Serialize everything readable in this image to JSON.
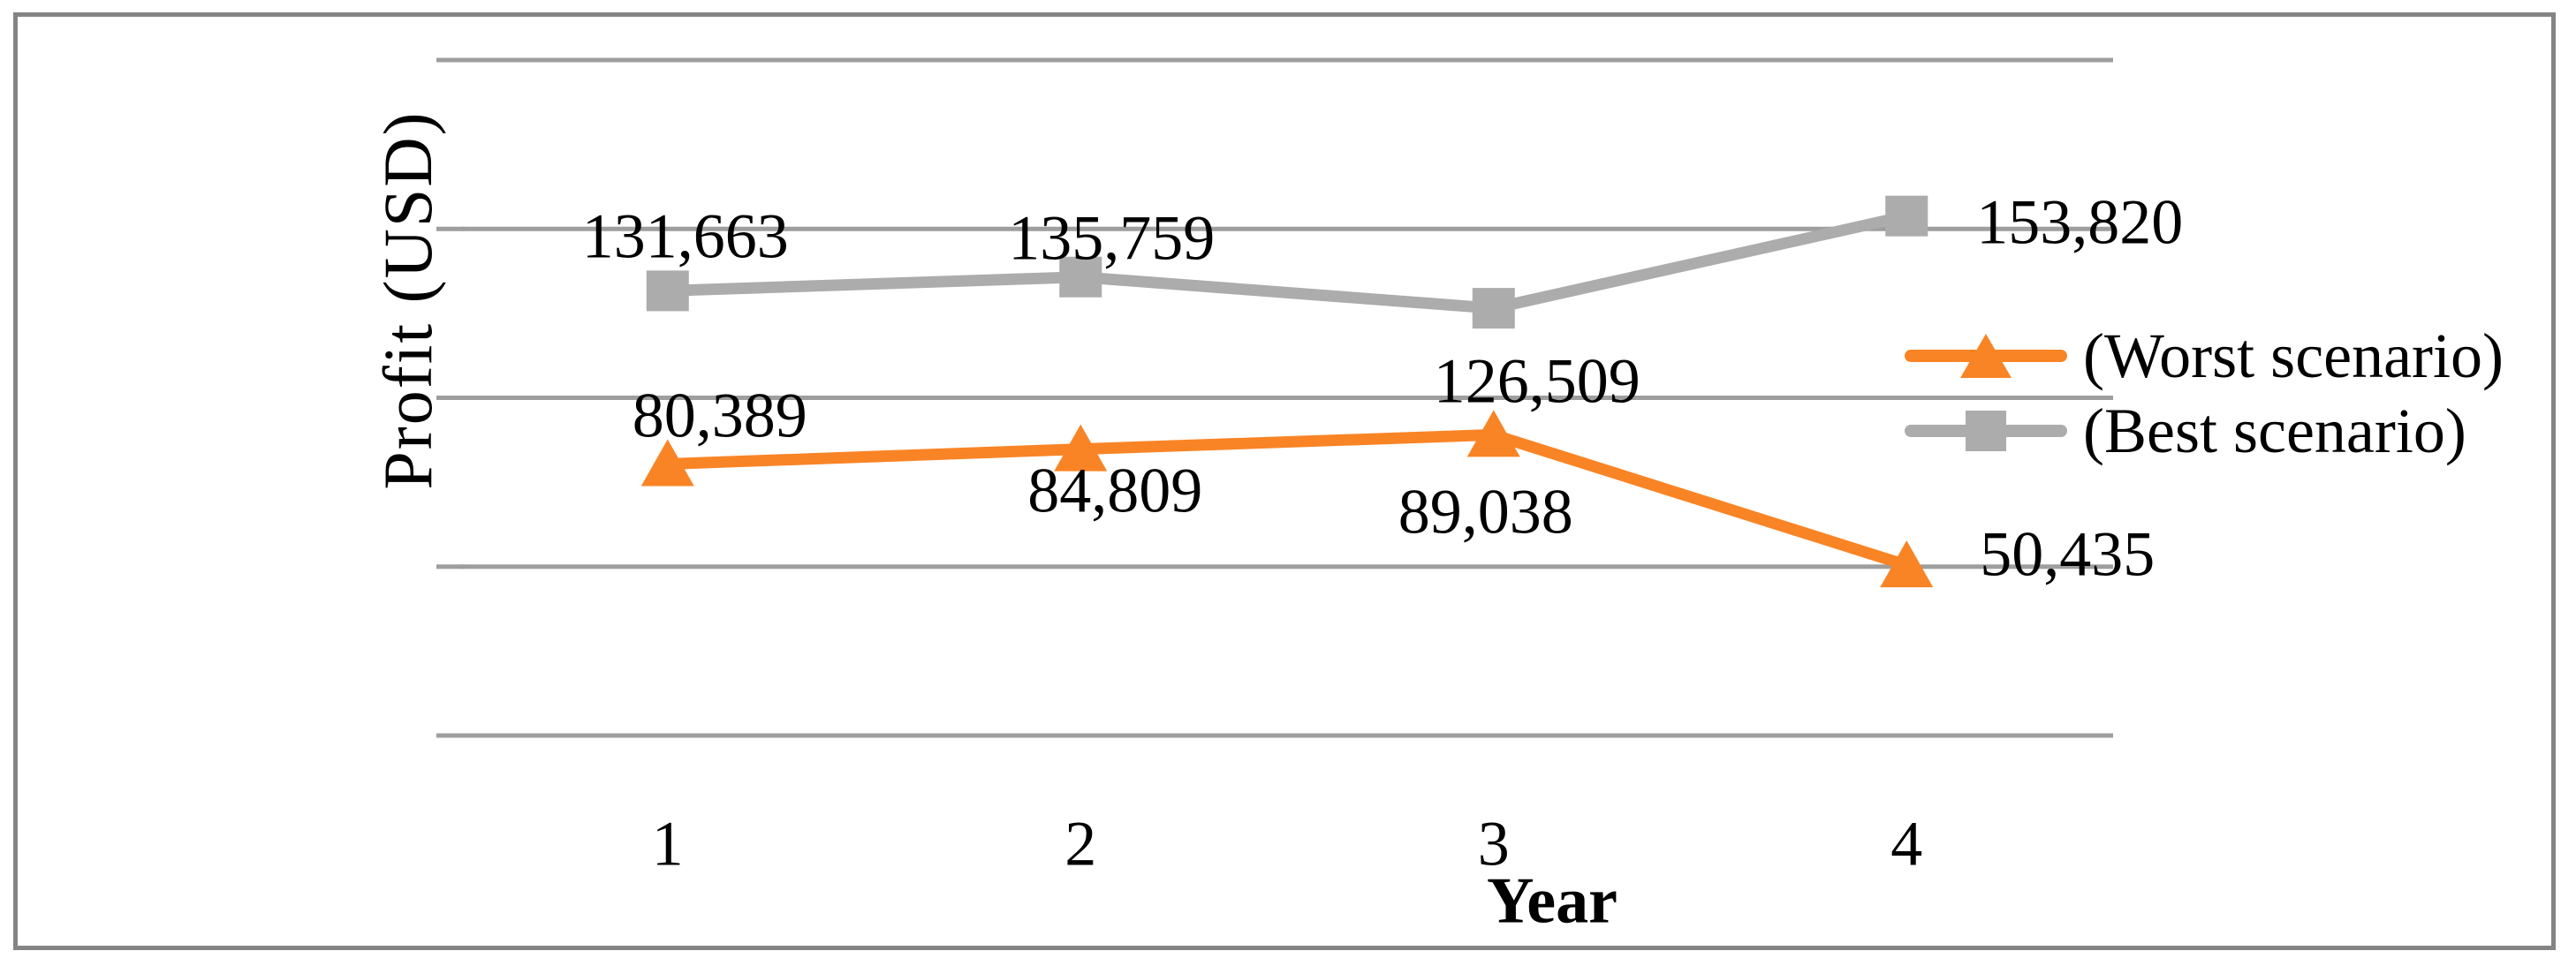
{
  "figure": {
    "frame_color": "#848484",
    "background_color": "#ffffff",
    "gridline_color": "#9e9e9e",
    "text_color": "#000000"
  },
  "chart_data": {
    "type": "line",
    "title": "",
    "xlabel": "Year",
    "ylabel": "Profit (USD)",
    "categories": [
      "1",
      "2",
      "3",
      "4"
    ],
    "ylim": [
      0,
      200000
    ],
    "gridline_step": 50000,
    "grid": true,
    "y_tick_labels_shown": false,
    "legend_position": "right-inside",
    "series": [
      {
        "name": "(Worst scenario)",
        "color": "#f98425",
        "marker": "triangle",
        "values": [
          80389,
          84809,
          89038,
          50435
        ],
        "labels": [
          "80,389",
          "84,809",
          "89,038",
          "50,435"
        ],
        "label_offsets": [
          [
            59,
            -55
          ],
          [
            39,
            47
          ],
          [
            -9,
            88
          ],
          [
            182,
            -12
          ]
        ]
      },
      {
        "name": "(Best scenario)",
        "color": "#acacac",
        "marker": "square",
        "values": [
          131663,
          135759,
          126509,
          153820
        ],
        "labels": [
          "131,663",
          "135,759",
          "126,509",
          "153,820"
        ],
        "label_offsets": [
          [
            20,
            -61
          ],
          [
            35,
            -44
          ],
          [
            49,
            83
          ],
          [
            196,
            7
          ]
        ]
      }
    ]
  }
}
